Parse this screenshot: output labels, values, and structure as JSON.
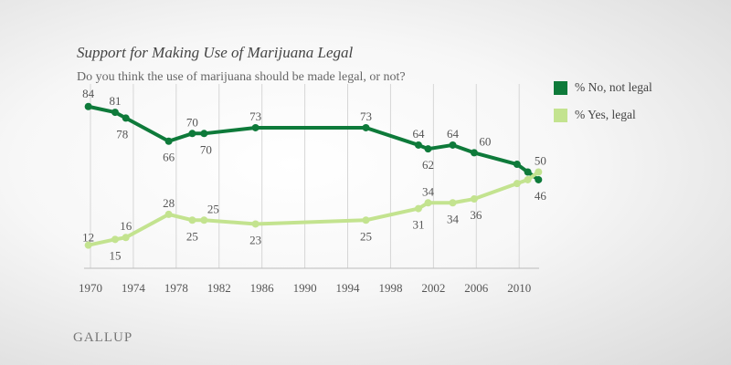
{
  "chart_data": {
    "type": "line",
    "title": "Support for Making Use of Marijuana Legal",
    "subtitle": "Do you think the use of marijuana should be made legal, or not?",
    "xlabel": "",
    "ylabel": "",
    "xlim": [
      1969.7,
      2012
    ],
    "ylim": [
      0,
      100
    ],
    "x_ticks": [
      "1970",
      "1974",
      "1978",
      "1982",
      "1986",
      "1990",
      "1994",
      "1998",
      "2002",
      "2006",
      "2010"
    ],
    "grid": "vertical",
    "legend_position": "top-right",
    "x": [
      1969.8,
      1972.3,
      1973.3,
      1977.3,
      1979.5,
      1980.6,
      1985.4,
      1995.7,
      2000.6,
      2001.5,
      2003.8,
      2005.8,
      2009.8,
      2010.8,
      2011.8
    ],
    "series": [
      {
        "name": "% No, not legal",
        "color": "#0e7a3a",
        "values": [
          84,
          81,
          78,
          66,
          70,
          70,
          73,
          73,
          64,
          62,
          64,
          60,
          54,
          50,
          46
        ],
        "labels": [
          "84",
          "81",
          "78",
          "66",
          "70",
          "70",
          "73",
          "73",
          "64",
          "62",
          "64",
          "60",
          "",
          "",
          "46"
        ]
      },
      {
        "name": "% Yes, legal",
        "color": "#c3e38f",
        "values": [
          12,
          15,
          16,
          28,
          25,
          25,
          23,
          25,
          31,
          34,
          34,
          36,
          44,
          46,
          50
        ],
        "labels": [
          "12",
          "15",
          "16",
          "28",
          "25",
          "25",
          "23",
          "25",
          "31",
          "34",
          "34",
          "36",
          "",
          "",
          "50"
        ]
      }
    ]
  },
  "logo": "GALLUP"
}
